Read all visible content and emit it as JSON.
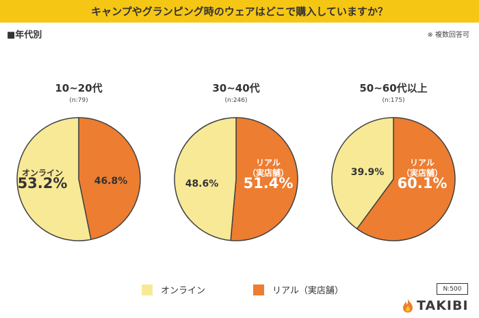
{
  "header": {
    "title": "キャンプやグランピング時のウェアはどこで購入していますか？",
    "section_label": "■年代別",
    "note": "※ 複数回答可"
  },
  "colors": {
    "title_bar": "#f6c614",
    "online": "#f8e997",
    "real": "#ed7d31",
    "outline": "#404040"
  },
  "chart_data": [
    {
      "type": "pie",
      "title": "10~20代",
      "subtitle": "(n:79)",
      "slices": [
        {
          "name": "リアル（実店舗）",
          "value": 46.8,
          "label": "46.8%",
          "inner_label": "",
          "color": "#ed7d31"
        },
        {
          "name": "オンライン",
          "value": 53.2,
          "label": "53.2%",
          "inner_label": "オンライン",
          "color": "#f8e997"
        }
      ],
      "start": "12 o'clock",
      "direction": "clockwise"
    },
    {
      "type": "pie",
      "title": "30~40代",
      "subtitle": "(n:246)",
      "slices": [
        {
          "name": "リアル（実店舗）",
          "value": 51.4,
          "label": "51.4%",
          "inner_label": "リアル\n（実店舗）",
          "color": "#ed7d31"
        },
        {
          "name": "オンライン",
          "value": 48.6,
          "label": "48.6%",
          "inner_label": "",
          "color": "#f8e997"
        }
      ],
      "start": "12 o'clock",
      "direction": "clockwise"
    },
    {
      "type": "pie",
      "title": "50~60代以上",
      "subtitle": "(n:175)",
      "slices": [
        {
          "name": "リアル（実店舗）",
          "value": 60.1,
          "label": "60.1%",
          "inner_label": "リアル\n（実店舗）",
          "color": "#ed7d31"
        },
        {
          "name": "オンライン",
          "value": 39.9,
          "label": "39.9%",
          "inner_label": "",
          "color": "#f8e997"
        }
      ],
      "start": "12 o'clock",
      "direction": "clockwise"
    }
  ],
  "legend": {
    "placement": "bottom",
    "items": [
      {
        "label": "オンライン",
        "color": "#f8e997"
      },
      {
        "label": "リアル（実店舗）",
        "color": "#ed7d31"
      }
    ]
  },
  "footer": {
    "n_total": "N:500",
    "logo_text": "TAKIBI",
    "logo_icon": "flame-icon"
  }
}
